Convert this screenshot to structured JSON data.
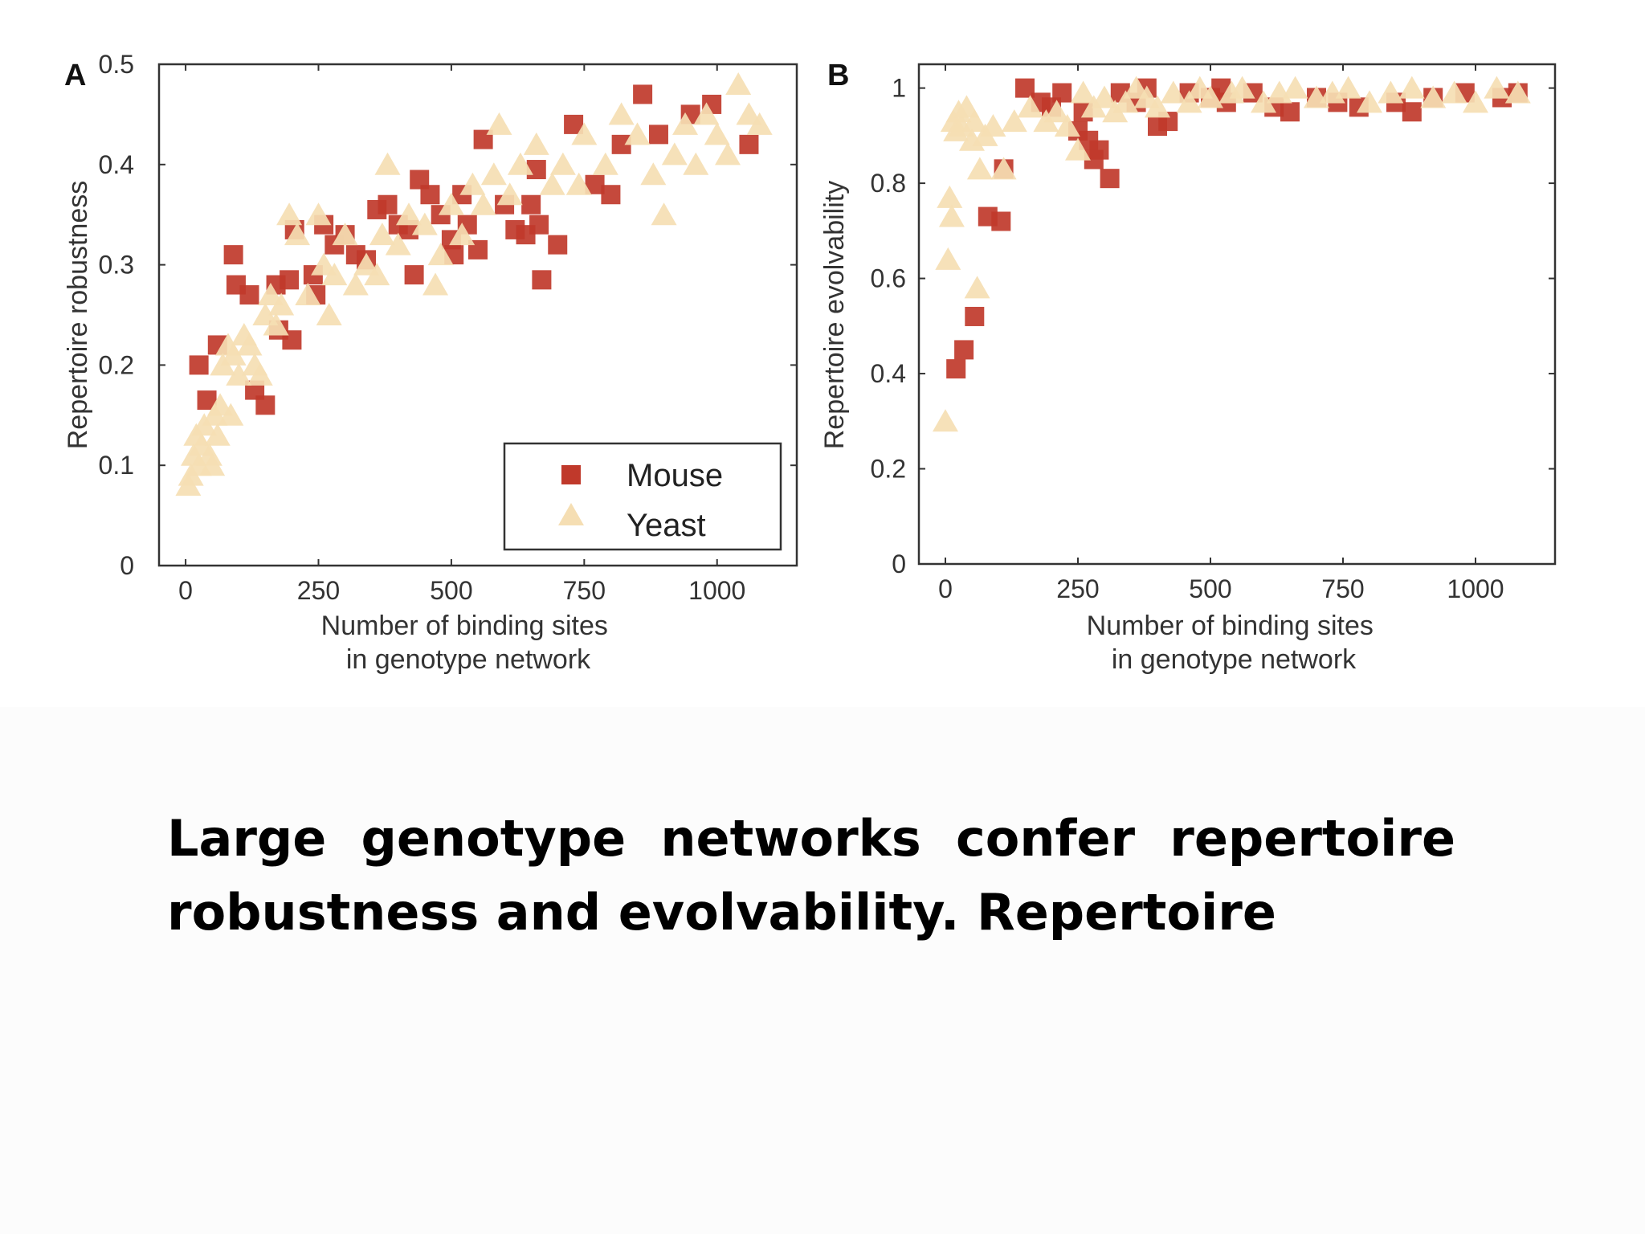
{
  "caption": "Large genotype networks confer repertoire robustness and evolvability. Repertoire",
  "colors": {
    "mouse": "#c0392b",
    "yeast": "#f5deb3",
    "axis": "#333333"
  },
  "chart_data": [
    {
      "type": "scatter",
      "panel_label": "A",
      "title": "",
      "xlabel": "Number of binding sites\nin genotype network",
      "ylabel": "Repertoire robustness",
      "xlim": [
        -50,
        1150
      ],
      "ylim": [
        0,
        0.5
      ],
      "xticks": [
        0,
        250,
        500,
        750,
        1000
      ],
      "yticks": [
        0,
        0.1,
        0.2,
        0.3,
        0.4,
        0.5
      ],
      "grid": false,
      "legend": {
        "placement": "bottom-right",
        "entries": [
          "Mouse",
          "Yeast"
        ]
      },
      "series": [
        {
          "name": "Mouse",
          "marker": "square",
          "color": "#c0392b",
          "points": [
            [
              25,
              0.2
            ],
            [
              40,
              0.165
            ],
            [
              60,
              0.22
            ],
            [
              90,
              0.31
            ],
            [
              95,
              0.28
            ],
            [
              120,
              0.27
            ],
            [
              130,
              0.175
            ],
            [
              150,
              0.16
            ],
            [
              170,
              0.28
            ],
            [
              175,
              0.235
            ],
            [
              195,
              0.285
            ],
            [
              200,
              0.225
            ],
            [
              205,
              0.335
            ],
            [
              240,
              0.29
            ],
            [
              245,
              0.27
            ],
            [
              260,
              0.34
            ],
            [
              280,
              0.32
            ],
            [
              300,
              0.33
            ],
            [
              320,
              0.31
            ],
            [
              340,
              0.305
            ],
            [
              360,
              0.355
            ],
            [
              380,
              0.36
            ],
            [
              400,
              0.34
            ],
            [
              420,
              0.335
            ],
            [
              430,
              0.29
            ],
            [
              440,
              0.385
            ],
            [
              460,
              0.37
            ],
            [
              480,
              0.35
            ],
            [
              500,
              0.325
            ],
            [
              505,
              0.31
            ],
            [
              520,
              0.37
            ],
            [
              530,
              0.34
            ],
            [
              550,
              0.315
            ],
            [
              560,
              0.425
            ],
            [
              600,
              0.36
            ],
            [
              620,
              0.335
            ],
            [
              640,
              0.33
            ],
            [
              650,
              0.36
            ],
            [
              660,
              0.395
            ],
            [
              665,
              0.34
            ],
            [
              670,
              0.285
            ],
            [
              700,
              0.32
            ],
            [
              730,
              0.44
            ],
            [
              770,
              0.38
            ],
            [
              800,
              0.37
            ],
            [
              820,
              0.42
            ],
            [
              860,
              0.47
            ],
            [
              890,
              0.43
            ],
            [
              950,
              0.45
            ],
            [
              990,
              0.46
            ],
            [
              1060,
              0.42
            ]
          ]
        },
        {
          "name": "Yeast",
          "marker": "triangle",
          "color": "#f5deb3",
          "points": [
            [
              5,
              0.08
            ],
            [
              10,
              0.09
            ],
            [
              15,
              0.11
            ],
            [
              20,
              0.13
            ],
            [
              25,
              0.1
            ],
            [
              30,
              0.12
            ],
            [
              35,
              0.14
            ],
            [
              45,
              0.11
            ],
            [
              50,
              0.1
            ],
            [
              55,
              0.15
            ],
            [
              60,
              0.13
            ],
            [
              65,
              0.16
            ],
            [
              70,
              0.2
            ],
            [
              80,
              0.22
            ],
            [
              85,
              0.15
            ],
            [
              90,
              0.21
            ],
            [
              100,
              0.19
            ],
            [
              110,
              0.23
            ],
            [
              120,
              0.22
            ],
            [
              130,
              0.2
            ],
            [
              140,
              0.19
            ],
            [
              150,
              0.25
            ],
            [
              160,
              0.27
            ],
            [
              170,
              0.24
            ],
            [
              180,
              0.26
            ],
            [
              195,
              0.35
            ],
            [
              210,
              0.33
            ],
            [
              230,
              0.27
            ],
            [
              250,
              0.35
            ],
            [
              260,
              0.3
            ],
            [
              270,
              0.25
            ],
            [
              280,
              0.29
            ],
            [
              300,
              0.33
            ],
            [
              320,
              0.28
            ],
            [
              340,
              0.3
            ],
            [
              360,
              0.29
            ],
            [
              370,
              0.33
            ],
            [
              380,
              0.4
            ],
            [
              400,
              0.32
            ],
            [
              420,
              0.35
            ],
            [
              450,
              0.34
            ],
            [
              470,
              0.28
            ],
            [
              480,
              0.31
            ],
            [
              500,
              0.36
            ],
            [
              520,
              0.33
            ],
            [
              540,
              0.38
            ],
            [
              560,
              0.36
            ],
            [
              580,
              0.39
            ],
            [
              590,
              0.44
            ],
            [
              610,
              0.37
            ],
            [
              630,
              0.4
            ],
            [
              660,
              0.42
            ],
            [
              690,
              0.38
            ],
            [
              710,
              0.4
            ],
            [
              740,
              0.38
            ],
            [
              750,
              0.43
            ],
            [
              790,
              0.4
            ],
            [
              820,
              0.45
            ],
            [
              850,
              0.43
            ],
            [
              880,
              0.39
            ],
            [
              900,
              0.35
            ],
            [
              920,
              0.41
            ],
            [
              940,
              0.44
            ],
            [
              960,
              0.4
            ],
            [
              980,
              0.45
            ],
            [
              1000,
              0.43
            ],
            [
              1020,
              0.41
            ],
            [
              1040,
              0.48
            ],
            [
              1060,
              0.45
            ],
            [
              1080,
              0.44
            ]
          ]
        }
      ]
    },
    {
      "type": "scatter",
      "panel_label": "B",
      "title": "",
      "xlabel": "Number of binding sites\nin genotype network",
      "ylabel": "Repertoire evolvability",
      "xlim": [
        -50,
        1150
      ],
      "ylim": [
        0,
        1.05
      ],
      "xticks": [
        0,
        250,
        500,
        750,
        1000
      ],
      "yticks": [
        0,
        0.2,
        0.4,
        0.6,
        0.8,
        1
      ],
      "ytick_labels": [
        "0",
        "0.2",
        "0.4",
        "0.6",
        "0.8",
        "1"
      ],
      "grid": false,
      "series": [
        {
          "name": "Mouse",
          "marker": "square",
          "color": "#c0392b",
          "points": [
            [
              20,
              0.41
            ],
            [
              35,
              0.45
            ],
            [
              55,
              0.52
            ],
            [
              80,
              0.73
            ],
            [
              105,
              0.72
            ],
            [
              110,
              0.83
            ],
            [
              150,
              1.0
            ],
            [
              180,
              0.97
            ],
            [
              200,
              0.96
            ],
            [
              220,
              0.99
            ],
            [
              250,
              0.91
            ],
            [
              260,
              0.95
            ],
            [
              270,
              0.89
            ],
            [
              280,
              0.85
            ],
            [
              290,
              0.87
            ],
            [
              310,
              0.81
            ],
            [
              330,
              0.99
            ],
            [
              360,
              0.97
            ],
            [
              380,
              1.0
            ],
            [
              400,
              0.92
            ],
            [
              420,
              0.93
            ],
            [
              460,
              0.99
            ],
            [
              500,
              0.98
            ],
            [
              520,
              1.0
            ],
            [
              530,
              0.97
            ],
            [
              580,
              0.99
            ],
            [
              620,
              0.96
            ],
            [
              650,
              0.95
            ],
            [
              700,
              0.98
            ],
            [
              740,
              0.97
            ],
            [
              780,
              0.96
            ],
            [
              850,
              0.97
            ],
            [
              880,
              0.95
            ],
            [
              920,
              0.98
            ],
            [
              980,
              0.99
            ],
            [
              1050,
              0.98
            ],
            [
              1080,
              0.99
            ]
          ]
        },
        {
          "name": "Yeast",
          "marker": "triangle",
          "color": "#f5deb3",
          "points": [
            [
              0,
              0.3
            ],
            [
              5,
              0.64
            ],
            [
              8,
              0.77
            ],
            [
              12,
              0.73
            ],
            [
              15,
              0.93
            ],
            [
              20,
              0.91
            ],
            [
              25,
              0.95
            ],
            [
              30,
              0.92
            ],
            [
              40,
              0.96
            ],
            [
              50,
              0.89
            ],
            [
              55,
              0.93
            ],
            [
              60,
              0.58
            ],
            [
              65,
              0.83
            ],
            [
              75,
              0.9
            ],
            [
              90,
              0.92
            ],
            [
              110,
              0.83
            ],
            [
              130,
              0.93
            ],
            [
              160,
              0.96
            ],
            [
              190,
              0.93
            ],
            [
              210,
              0.95
            ],
            [
              230,
              0.92
            ],
            [
              250,
              0.87
            ],
            [
              260,
              0.99
            ],
            [
              280,
              0.96
            ],
            [
              300,
              0.98
            ],
            [
              320,
              0.95
            ],
            [
              340,
              0.97
            ],
            [
              360,
              1.0
            ],
            [
              380,
              0.98
            ],
            [
              400,
              0.96
            ],
            [
              430,
              0.99
            ],
            [
              460,
              0.97
            ],
            [
              480,
              1.0
            ],
            [
              500,
              0.98
            ],
            [
              540,
              0.99
            ],
            [
              560,
              1.0
            ],
            [
              600,
              0.97
            ],
            [
              630,
              0.99
            ],
            [
              660,
              1.0
            ],
            [
              700,
              0.98
            ],
            [
              730,
              0.99
            ],
            [
              760,
              1.0
            ],
            [
              800,
              0.97
            ],
            [
              840,
              0.99
            ],
            [
              880,
              1.0
            ],
            [
              920,
              0.98
            ],
            [
              960,
              0.99
            ],
            [
              1000,
              0.97
            ],
            [
              1040,
              1.0
            ],
            [
              1080,
              0.99
            ]
          ]
        }
      ]
    }
  ]
}
